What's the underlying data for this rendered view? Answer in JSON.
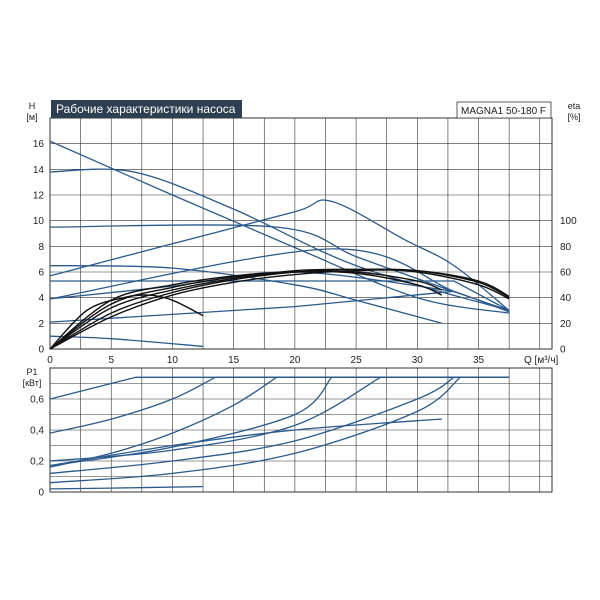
{
  "colors": {
    "curve": "#2a5a8c",
    "efficiency": "#111111",
    "grid": "#333333",
    "title_bg": "#2e3f52"
  },
  "chart_data": [
    {
      "type": "line",
      "title": "Рабочие характеристики насоса",
      "model": "MAGNA1 50-180 F",
      "xlabel": "Q [м³/ч]",
      "ylabel": [
        "H",
        "[м]"
      ],
      "y2label": [
        "eta",
        "[%]"
      ],
      "xlim": [
        0,
        41
      ],
      "ylim": [
        0,
        18
      ],
      "y2lim": [
        0,
        180
      ],
      "x_ticks": [
        0,
        5,
        10,
        15,
        20,
        25,
        30,
        35
      ],
      "y_ticks": [
        0,
        2,
        4,
        6,
        8,
        10,
        12,
        14,
        16
      ],
      "y2_ticks": [
        0,
        20,
        40,
        60,
        80,
        100
      ],
      "grid": true,
      "head_series": [
        {
          "x": [
            0,
            10,
            20,
            30,
            37.5
          ],
          "y": [
            16.2,
            12,
            7.9,
            4,
            2.8
          ]
        },
        {
          "x": [
            0,
            6.8,
            15,
            25,
            37.5
          ],
          "y": [
            13.8,
            13.8,
            10.9,
            6.5,
            3.0
          ]
        },
        {
          "x": [
            0,
            18.5,
            25,
            32,
            37.5
          ],
          "y": [
            9.5,
            9.5,
            7.2,
            4.8,
            3.0
          ]
        },
        {
          "x": [
            0,
            10,
            20,
            25,
            32
          ],
          "y": [
            6.5,
            6.3,
            5.0,
            3.8,
            2.0
          ]
        },
        {
          "x": [
            0,
            10,
            20,
            23,
            29,
            33,
            37.5
          ],
          "y": [
            5.7,
            8.2,
            10.7,
            11.5,
            8.5,
            6.5,
            3.0
          ]
        },
        {
          "x": [
            0,
            23,
            33,
            37.5
          ],
          "y": [
            3.9,
            7.8,
            4.5,
            2.9
          ]
        },
        {
          "x": [
            0,
            33,
            37.5
          ],
          "y": [
            5.3,
            5.3,
            3.0
          ]
        },
        {
          "x": [
            0,
            20,
            33
          ],
          "y": [
            2.1,
            3.3,
            4.5
          ]
        },
        {
          "x": [
            0,
            10,
            20,
            33
          ],
          "y": [
            3.9,
            4.9,
            6.0,
            4.5
          ]
        },
        {
          "x": [
            0,
            5,
            12.5
          ],
          "y": [
            1.0,
            0.8,
            0.2
          ]
        }
      ],
      "efficiency_series": [
        {
          "x": [
            0,
            3,
            6,
            8,
            10,
            12.5
          ],
          "y": [
            0,
            30,
            40,
            42,
            38,
            26
          ]
        },
        {
          "x": [
            0,
            5,
            10,
            15,
            20,
            25,
            30,
            32
          ],
          "y": [
            0,
            38,
            50,
            57,
            60,
            59,
            50,
            42
          ]
        },
        {
          "x": [
            0,
            5,
            10,
            15,
            20,
            25,
            30,
            32
          ],
          "y": [
            0,
            35,
            48,
            56,
            60,
            60,
            53,
            46
          ]
        },
        {
          "x": [
            0,
            5,
            10,
            15,
            20,
            25,
            30,
            35,
            37.5
          ],
          "y": [
            0,
            32,
            46,
            55,
            61,
            62,
            60,
            50,
            39
          ]
        },
        {
          "x": [
            0,
            5,
            10,
            15,
            20,
            25,
            30,
            35,
            37.5
          ],
          "y": [
            0,
            28,
            44,
            54,
            60,
            62,
            61,
            52,
            40
          ]
        },
        {
          "x": [
            0,
            5,
            10,
            15,
            20,
            25,
            30,
            35,
            37.5
          ],
          "y": [
            0,
            25,
            42,
            52,
            58,
            61,
            61,
            53,
            41
          ]
        }
      ]
    },
    {
      "type": "line",
      "ylabel": [
        "P1",
        "[кВт]"
      ],
      "xlim": [
        0,
        41
      ],
      "ylim": [
        0,
        0.8
      ],
      "y_ticks": [
        0,
        0.2,
        0.4,
        0.6
      ],
      "y_tick_labels": [
        "0",
        "0,2",
        "0,4",
        "0,6"
      ],
      "grid": true,
      "power_series": [
        {
          "x": [
            0,
            7,
            37.5
          ],
          "y": [
            0.6,
            0.74,
            0.74
          ]
        },
        {
          "x": [
            0,
            5,
            10,
            13.5,
            37.5
          ],
          "y": [
            0.38,
            0.47,
            0.6,
            0.74,
            0.74
          ]
        },
        {
          "x": [
            0,
            5,
            10,
            15,
            18.5,
            37.5
          ],
          "y": [
            0.16,
            0.25,
            0.38,
            0.56,
            0.74,
            0.74
          ]
        },
        {
          "x": [
            0,
            10,
            20,
            23,
            37.5
          ],
          "y": [
            0.17,
            0.29,
            0.5,
            0.74,
            0.74
          ]
        },
        {
          "x": [
            0,
            10,
            20,
            27,
            37.5
          ],
          "y": [
            0.2,
            0.27,
            0.43,
            0.74,
            0.74
          ]
        },
        {
          "x": [
            0,
            10,
            20,
            30,
            33,
            37.5
          ],
          "y": [
            0.12,
            0.2,
            0.33,
            0.6,
            0.74,
            0.74
          ]
        },
        {
          "x": [
            0,
            10,
            20,
            30,
            33.5,
            37.5
          ],
          "y": [
            0.06,
            0.12,
            0.25,
            0.52,
            0.74,
            0.74
          ]
        },
        {
          "x": [
            0,
            10,
            20,
            30,
            32
          ],
          "y": [
            0.17,
            0.3,
            0.4,
            0.46,
            0.47
          ]
        },
        {
          "x": [
            0,
            5,
            12.5
          ],
          "y": [
            0.02,
            0.025,
            0.035
          ]
        }
      ]
    }
  ]
}
